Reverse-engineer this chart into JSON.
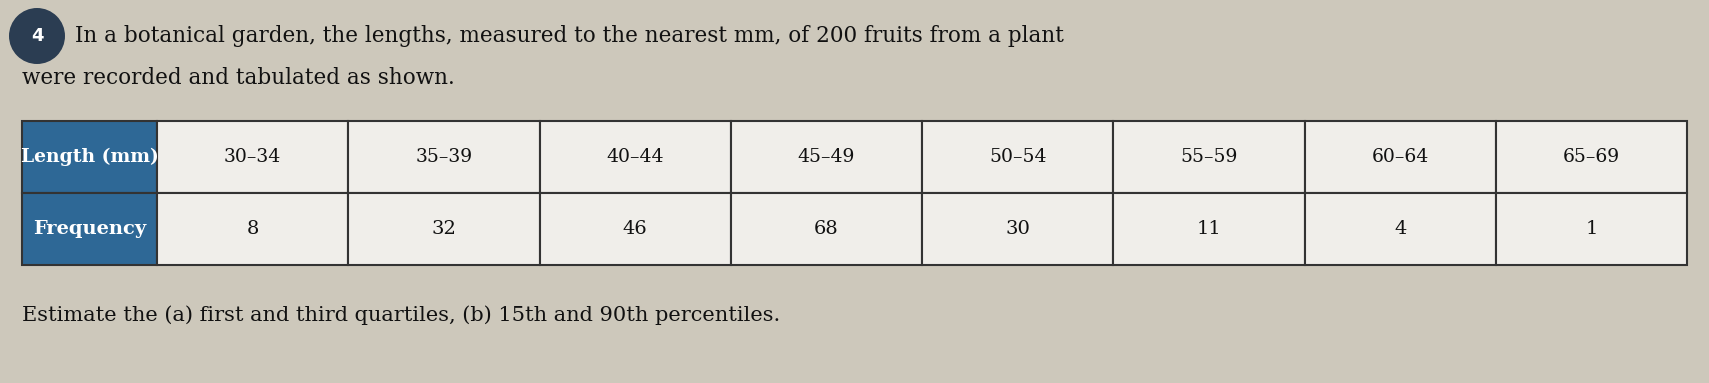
{
  "question_number": "4",
  "intro_text_line1": "In a botanical garden, the lengths, measured to the nearest mm, of 200 fruits from a plant",
  "intro_text_line2": "were recorded and tabulated as shown.",
  "footer_text": "Estimate the (a) first and third quartiles, (b) 15th and 90th percentiles.",
  "table": {
    "header_col_label": "Length (mm)",
    "data_col_label": "Frequency",
    "col_labels": [
      "30–34",
      "35–39",
      "40–44",
      "45–49",
      "50–54",
      "55–59",
      "60–64",
      "65–69"
    ],
    "frequencies": [
      8,
      32,
      46,
      68,
      30,
      11,
      4,
      1
    ],
    "header_bg_color": "#2e6896",
    "header_text_color": "#ffffff",
    "cell_bg_color": "#f0eeea",
    "cell_text_color": "#111111",
    "border_color": "#333333"
  },
  "background_color": "#cdc8bb",
  "text_color": "#111111",
  "font_size_intro": 15.5,
  "font_size_table_header": 13.5,
  "font_size_table_data": 14,
  "font_size_footer": 15.0,
  "circle_bg_color": "#2b3d52",
  "circle_text_color": "#ffffff",
  "circle_font_size": 13
}
